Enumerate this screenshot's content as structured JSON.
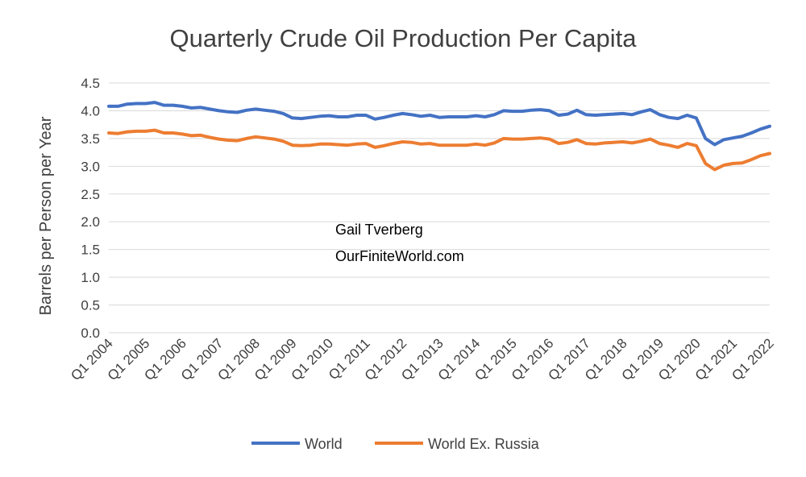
{
  "chart_data": {
    "type": "line",
    "title": "Quarterly Crude Oil Production Per Capita",
    "xlabel": "",
    "ylabel": "Barrels per Person per Year",
    "ylim": [
      0,
      4.5
    ],
    "yticks": [
      "0.0",
      "0.5",
      "1.0",
      "1.5",
      "2.0",
      "2.5",
      "3.0",
      "3.5",
      "4.0",
      "4.5"
    ],
    "ytick_values": [
      0,
      0.5,
      1.0,
      1.5,
      2.0,
      2.5,
      3.0,
      3.5,
      4.0,
      4.5
    ],
    "xtick_labels": [
      "Q1 2004",
      "Q1 2005",
      "Q1 2006",
      "Q1 2007",
      "Q1 2008",
      "Q1 2009",
      "Q1 2010",
      "Q1 2011",
      "Q1 2012",
      "Q1 2013",
      "Q1 2014",
      "Q1 2015",
      "Q1 2016",
      "Q1 2017",
      "Q1 2018",
      "Q1 2019",
      "Q1 2020",
      "Q1 2021",
      "Q1 2022"
    ],
    "x": [
      "Q1 2004",
      "Q2 2004",
      "Q3 2004",
      "Q4 2004",
      "Q1 2005",
      "Q2 2005",
      "Q3 2005",
      "Q4 2005",
      "Q1 2006",
      "Q2 2006",
      "Q3 2006",
      "Q4 2006",
      "Q1 2007",
      "Q2 2007",
      "Q3 2007",
      "Q4 2007",
      "Q1 2008",
      "Q2 2008",
      "Q3 2008",
      "Q4 2008",
      "Q1 2009",
      "Q2 2009",
      "Q3 2009",
      "Q4 2009",
      "Q1 2010",
      "Q2 2010",
      "Q3 2010",
      "Q4 2010",
      "Q1 2011",
      "Q2 2011",
      "Q3 2011",
      "Q4 2011",
      "Q1 2012",
      "Q2 2012",
      "Q3 2012",
      "Q4 2012",
      "Q1 2013",
      "Q2 2013",
      "Q3 2013",
      "Q4 2013",
      "Q1 2014",
      "Q2 2014",
      "Q3 2014",
      "Q4 2014",
      "Q1 2015",
      "Q2 2015",
      "Q3 2015",
      "Q4 2015",
      "Q1 2016",
      "Q2 2016",
      "Q3 2016",
      "Q4 2016",
      "Q1 2017",
      "Q2 2017",
      "Q3 2017",
      "Q4 2017",
      "Q1 2018",
      "Q2 2018",
      "Q3 2018",
      "Q4 2018",
      "Q1 2019",
      "Q2 2019",
      "Q3 2019",
      "Q4 2019",
      "Q1 2020",
      "Q2 2020",
      "Q3 2020",
      "Q4 2020",
      "Q1 2021",
      "Q2 2021",
      "Q3 2021",
      "Q4 2021",
      "Q1 2022"
    ],
    "series": [
      {
        "name": "World",
        "color": "#4472c4",
        "values": [
          4.08,
          4.08,
          4.12,
          4.13,
          4.13,
          4.15,
          4.1,
          4.1,
          4.08,
          4.05,
          4.06,
          4.03,
          4.0,
          3.98,
          3.97,
          4.01,
          4.03,
          4.01,
          3.99,
          3.95,
          3.87,
          3.86,
          3.88,
          3.9,
          3.91,
          3.89,
          3.89,
          3.92,
          3.92,
          3.85,
          3.88,
          3.92,
          3.95,
          3.93,
          3.9,
          3.92,
          3.88,
          3.89,
          3.89,
          3.89,
          3.91,
          3.89,
          3.93,
          4.0,
          3.99,
          3.99,
          4.01,
          4.02,
          4.0,
          3.92,
          3.94,
          4.01,
          3.93,
          3.92,
          3.93,
          3.94,
          3.95,
          3.93,
          3.98,
          4.02,
          3.93,
          3.88,
          3.86,
          3.92,
          3.87,
          3.5,
          3.39,
          3.48,
          3.51,
          3.54,
          3.6,
          3.67,
          3.72
        ]
      },
      {
        "name": "World Ex. Russia",
        "color": "#ed7d31",
        "values": [
          3.6,
          3.59,
          3.62,
          3.63,
          3.63,
          3.65,
          3.6,
          3.6,
          3.58,
          3.55,
          3.56,
          3.52,
          3.49,
          3.47,
          3.46,
          3.5,
          3.53,
          3.51,
          3.49,
          3.45,
          3.38,
          3.37,
          3.38,
          3.4,
          3.4,
          3.39,
          3.38,
          3.4,
          3.41,
          3.34,
          3.37,
          3.41,
          3.44,
          3.43,
          3.4,
          3.41,
          3.38,
          3.38,
          3.38,
          3.38,
          3.4,
          3.38,
          3.42,
          3.5,
          3.49,
          3.49,
          3.5,
          3.51,
          3.49,
          3.41,
          3.43,
          3.48,
          3.41,
          3.4,
          3.42,
          3.43,
          3.44,
          3.42,
          3.45,
          3.49,
          3.41,
          3.38,
          3.34,
          3.41,
          3.37,
          3.05,
          2.94,
          3.02,
          3.05,
          3.06,
          3.12,
          3.19,
          3.23
        ]
      }
    ],
    "legend_position": "bottom",
    "grid": true,
    "annotations": [
      "Gail Tverberg",
      "OurFiniteWorld.com"
    ]
  }
}
